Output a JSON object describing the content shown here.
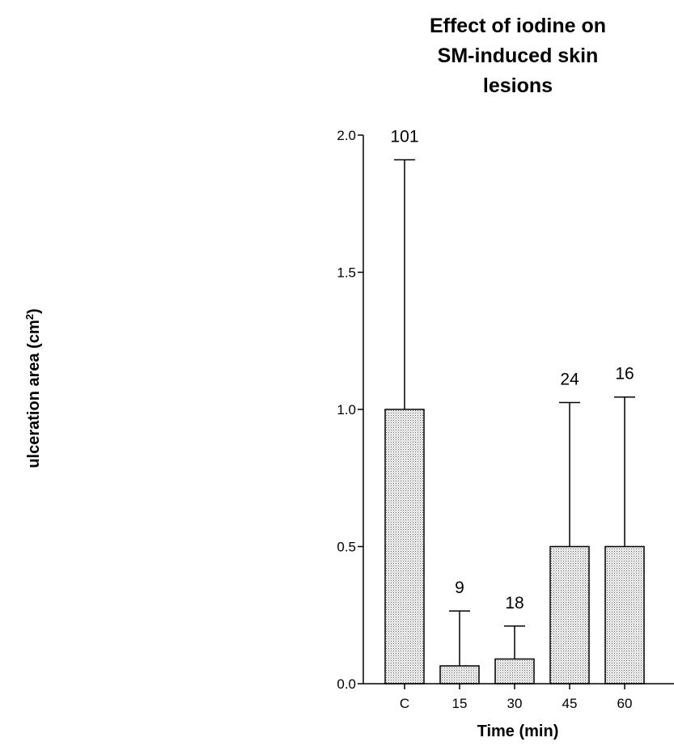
{
  "chart_data": {
    "type": "bar",
    "title_lines": [
      "Effect of iodine on",
      "SM-induced skin",
      "lesions"
    ],
    "xlabel": "Time (min)",
    "ylabel": "ulceration area (cm",
    "ylabel_superscript": "2",
    "ylabel_close": ")",
    "categories": [
      "C",
      "15",
      "30",
      "45",
      "60"
    ],
    "values": [
      1.0,
      0.065,
      0.09,
      0.5,
      0.5
    ],
    "error_upper": [
      1.91,
      0.265,
      0.21,
      1.025,
      1.045
    ],
    "data_labels": [
      "101",
      "9",
      "18",
      "24",
      "16"
    ],
    "ylim": [
      0,
      2.0
    ],
    "yticks": [
      0.0,
      0.5,
      1.0,
      1.5,
      2.0
    ],
    "ytick_labels": [
      "0.0",
      "0.5",
      "1.0",
      "1.5",
      "2.0"
    ],
    "bar_fill": "#d9d9d9",
    "grid": false,
    "legend": "none"
  }
}
